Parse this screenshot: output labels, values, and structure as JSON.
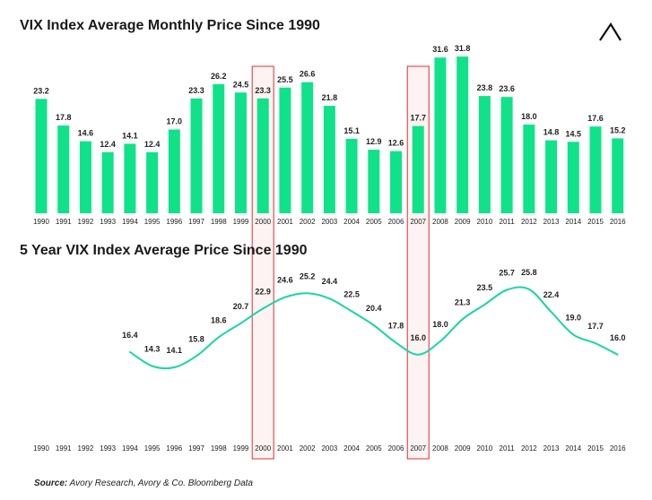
{
  "colors": {
    "bar": "#10e28a",
    "line": "#19d5a5",
    "highlight": "#e03030",
    "highlight_fill": "#fdeaea"
  },
  "logo": {
    "icon": "chevron-up-logo-icon"
  },
  "source": {
    "label": "Source:",
    "text": " Avory Research, Avory & Co. Bloomberg Data"
  },
  "chart_data": [
    {
      "type": "bar",
      "title": "VIX Index Average Monthly Price Since 1990",
      "categories": [
        "1990",
        "1991",
        "1992",
        "1993",
        "1994",
        "1995",
        "1996",
        "1997",
        "1998",
        "1999",
        "2000",
        "2001",
        "2002",
        "2003",
        "2004",
        "2005",
        "2006",
        "2007",
        "2008",
        "2009",
        "2010",
        "2011",
        "2012",
        "2013",
        "2014",
        "2015",
        "2016"
      ],
      "values": [
        23.2,
        17.8,
        14.6,
        12.4,
        14.1,
        12.4,
        17.0,
        23.3,
        26.2,
        24.5,
        23.3,
        25.5,
        26.6,
        21.8,
        15.1,
        12.9,
        12.6,
        17.7,
        31.6,
        31.8,
        23.8,
        23.6,
        18.0,
        14.8,
        14.5,
        17.6,
        15.2
      ],
      "value_labels": [
        "23.2",
        "17.8",
        "14.6",
        "12.4",
        "14.1",
        "12.4",
        "17.0",
        "23.3",
        "26.2",
        "24.5",
        "23.3",
        "25.5",
        "26.6",
        "21.8",
        "15.1",
        "12.9",
        "12.6",
        "17.7",
        "31.6",
        "31.8",
        "23.8",
        "23.6",
        "18.0",
        "14.8",
        "14.5",
        "17.6",
        "15.2"
      ],
      "highlighted": [
        "2000",
        "2007"
      ],
      "ylim": [
        0,
        33
      ]
    },
    {
      "type": "line",
      "title": "5 Year VIX Index Average Price Since 1990",
      "categories": [
        "1990",
        "1991",
        "1992",
        "1993",
        "1994",
        "1995",
        "1996",
        "1997",
        "1998",
        "1999",
        "2000",
        "2001",
        "2002",
        "2003",
        "2004",
        "2005",
        "2006",
        "2007",
        "2008",
        "2009",
        "2010",
        "2011",
        "2012",
        "2013",
        "2014",
        "2015",
        "2016"
      ],
      "x": [
        "1994",
        "1995",
        "1996",
        "1997",
        "1998",
        "1999",
        "2000",
        "2001",
        "2002",
        "2003",
        "2004",
        "2005",
        "2006",
        "2007",
        "2008",
        "2009",
        "2010",
        "2011",
        "2012",
        "2013",
        "2014",
        "2015",
        "2016"
      ],
      "values": [
        16.4,
        14.3,
        14.1,
        15.8,
        18.6,
        20.7,
        22.9,
        24.6,
        25.2,
        24.4,
        22.5,
        20.4,
        17.8,
        16.0,
        18.0,
        21.3,
        23.5,
        25.7,
        25.8,
        22.4,
        19.0,
        17.7,
        16.0
      ],
      "value_labels": [
        "16.4",
        "14.3",
        "14.1",
        "15.8",
        "18.6",
        "20.7",
        "22.9",
        "24.6",
        "25.2",
        "24.4",
        "22.5",
        "20.4",
        "17.8",
        "16.0",
        "18.0",
        "21.3",
        "23.5",
        "25.7",
        "25.8",
        "22.4",
        "19.0",
        "17.7",
        "16.0"
      ],
      "highlighted": [
        "2000",
        "2007"
      ],
      "ylim": [
        0,
        28
      ]
    }
  ]
}
